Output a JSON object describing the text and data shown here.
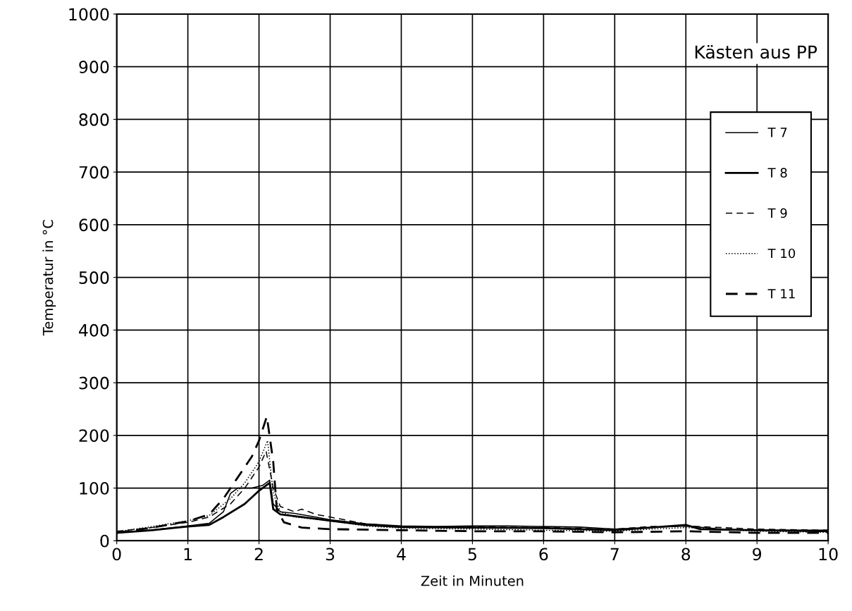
{
  "chart_data": {
    "type": "line",
    "xlabel": "Zeit in Minuten",
    "ylabel": "Temperatur in °C",
    "annotations": [
      "Kästen aus PP"
    ],
    "xlim": [
      0,
      10
    ],
    "ylim": [
      0,
      1000
    ],
    "xticks": [
      0,
      1,
      2,
      3,
      4,
      5,
      6,
      7,
      8,
      9,
      10
    ],
    "yticks": [
      0,
      100,
      200,
      300,
      400,
      500,
      600,
      700,
      800,
      900,
      1000
    ],
    "grid": true,
    "legend": "right",
    "marker": "none",
    "series": [
      {
        "name": "T 7",
        "color": "#000000",
        "line_style": "solid",
        "x": [
          0,
          0.3,
          0.6,
          1,
          1.3,
          1.5,
          1.6,
          1.7,
          1.9,
          2.05,
          2.15,
          2.2,
          2.3,
          2.5,
          2.8,
          3,
          3.5,
          4,
          4.5,
          5,
          5.5,
          6,
          6.5,
          7,
          7.5,
          8,
          8.5,
          9,
          9.5,
          10
        ],
        "values": [
          17,
          18,
          22,
          28,
          33,
          55,
          90,
          100,
          100,
          105,
          115,
          70,
          55,
          52,
          45,
          40,
          32,
          28,
          27,
          28,
          28,
          27,
          26,
          22,
          25,
          28,
          22,
          20,
          20,
          20
        ]
      },
      {
        "name": "T 8",
        "color": "#000000",
        "line_style": "solid",
        "x": [
          0,
          0.5,
          1,
          1.3,
          1.5,
          1.8,
          2.0,
          2.15,
          2.2,
          2.3,
          2.6,
          3,
          3.5,
          4,
          5,
          6,
          6.5,
          7,
          7.5,
          8,
          8.2,
          9,
          10
        ],
        "values": [
          15,
          20,
          27,
          30,
          45,
          70,
          95,
          110,
          60,
          50,
          45,
          38,
          30,
          26,
          25,
          24,
          22,
          20,
          25,
          30,
          22,
          20,
          18
        ]
      },
      {
        "name": "T 9",
        "color": "#000000",
        "line_style": "dashed",
        "x": [
          0,
          0.5,
          1,
          1.3,
          1.6,
          1.8,
          2.0,
          2.1,
          2.2,
          2.3,
          2.5,
          2.6,
          2.8,
          3,
          3.5,
          4,
          5,
          6,
          7,
          7.5,
          8,
          9,
          10
        ],
        "values": [
          18,
          25,
          35,
          45,
          70,
          100,
          140,
          170,
          100,
          65,
          55,
          60,
          50,
          45,
          32,
          27,
          26,
          25,
          22,
          27,
          28,
          22,
          20
        ]
      },
      {
        "name": "T 10",
        "color": "#000000",
        "line_style": "dotted",
        "x": [
          0,
          0.5,
          1,
          1.3,
          1.6,
          1.8,
          2.0,
          2.12,
          2.2,
          2.3,
          2.5,
          3,
          3.5,
          4,
          5,
          6,
          7,
          7.5,
          8,
          9,
          10
        ],
        "values": [
          17,
          27,
          38,
          48,
          80,
          110,
          150,
          190,
          90,
          55,
          45,
          38,
          28,
          24,
          22,
          20,
          18,
          22,
          25,
          18,
          16
        ]
      },
      {
        "name": "T 11",
        "color": "#000000",
        "line_style": "dashed",
        "x": [
          0,
          0.5,
          1,
          1.3,
          1.5,
          1.7,
          1.9,
          2.0,
          2.11,
          2.2,
          2.25,
          2.35,
          2.6,
          3,
          4,
          5,
          6,
          7,
          8,
          9,
          10
        ],
        "values": [
          15,
          25,
          37,
          50,
          80,
          120,
          160,
          190,
          236,
          150,
          60,
          35,
          25,
          22,
          20,
          18,
          18,
          16,
          18,
          15,
          15
        ]
      }
    ]
  }
}
